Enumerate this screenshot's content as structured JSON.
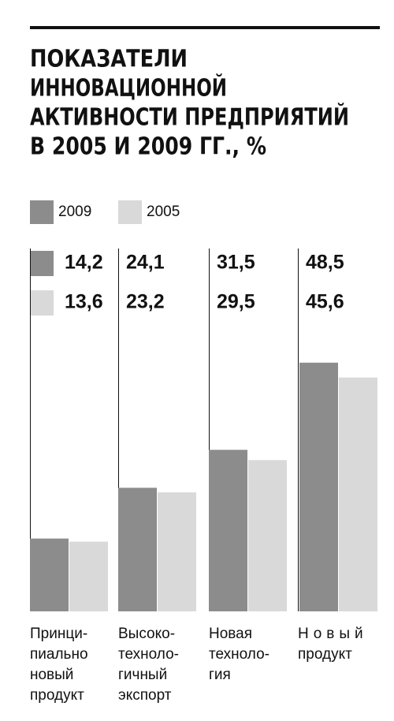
{
  "chart_data": {
    "type": "bar",
    "title": [
      "ПОКАЗАТЕЛИ",
      "ИННОВАЦИОННОЙ",
      "АКТИВНОСТИ ПРЕДПРИЯТИЙ",
      "В 2005 И 2009 ГГ., %"
    ],
    "categories": [
      "Принци-\nпиально\nновый\nпродукт",
      "Высоко-\nтехноло-\nгичный\nэкспорт",
      "Новая\nтехноло-\nгия",
      "Новый\nпродукт"
    ],
    "series": [
      {
        "name": "2009",
        "color": "#8c8c8c",
        "values": [
          14.2,
          24.1,
          31.5,
          48.5
        ],
        "value_labels": [
          "14,2",
          "24,1",
          "31,5",
          "48,5"
        ]
      },
      {
        "name": "2005",
        "color": "#d9d9d9",
        "values": [
          13.6,
          23.2,
          29.5,
          45.6
        ],
        "value_labels": [
          "13,6",
          "23,2",
          "29,5",
          "45,6"
        ]
      }
    ]
  }
}
